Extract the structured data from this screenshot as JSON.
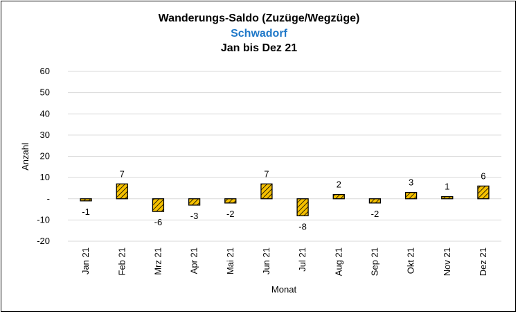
{
  "chart_data": {
    "type": "bar",
    "title": "Wanderungs-Saldo (Zuzüge/Wegzüge)",
    "subtitle": "Schwadorf",
    "period": "Jan bis Dez 21",
    "xlabel": "Monat",
    "ylabel": "Anzahl",
    "ylim": [
      -20,
      60
    ],
    "yticks": [
      -20,
      -10,
      0,
      10,
      20,
      30,
      40,
      50,
      60
    ],
    "ytick_labels": [
      "-20",
      "-10",
      "-",
      "10",
      "20",
      "30",
      "40",
      "50",
      "60"
    ],
    "grid": true,
    "legend": "none",
    "categories": [
      "Jan 21",
      "Feb 21",
      "Mrz 21",
      "Apr 21",
      "Mai 21",
      "Jun 21",
      "Jul 21",
      "Aug 21",
      "Sep 21",
      "Okt 21",
      "Nov 21",
      "Dez 21"
    ],
    "values": [
      -1,
      7,
      -6,
      -3,
      -2,
      7,
      -8,
      2,
      -2,
      3,
      1,
      6
    ],
    "data_labels": [
      "-1",
      "7",
      "-6",
      "-3",
      "-2",
      "7",
      "-8",
      "2",
      "-2",
      "3",
      "1",
      "6"
    ],
    "colors": {
      "bar_fill": "#f5c000",
      "bar_hatch": "#000000",
      "title": "#000000",
      "subtitle": "#1f78c8",
      "grid": "#d9d9d9"
    }
  }
}
